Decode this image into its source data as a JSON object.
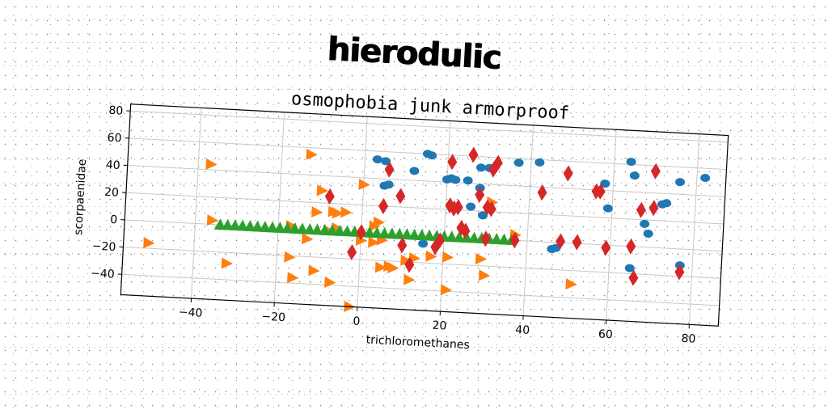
{
  "main_title": "hierodulic",
  "chart_data": {
    "type": "scatter",
    "title": "osmophobia junk armorproof",
    "xlabel": "trichloromethanes",
    "ylabel": "scorpaenidae",
    "xlim": [
      -57,
      87
    ],
    "ylim": [
      -55,
      85
    ],
    "xticks": [
      -40,
      -20,
      0,
      20,
      40,
      60,
      80
    ],
    "yticks": [
      -40,
      -20,
      0,
      20,
      40,
      60,
      80
    ],
    "grid": true,
    "series": [
      {
        "marker": "circle",
        "color": "#1f77b4",
        "x": [
          3,
          5,
          5,
          6,
          12,
          15,
          16,
          20,
          21,
          22,
          25,
          26,
          28,
          28,
          29,
          30,
          37,
          42,
          46,
          47,
          58,
          59,
          64,
          65,
          65,
          68,
          69,
          72,
          73,
          76,
          77,
          82,
          15
        ],
        "y": [
          54,
          53,
          35,
          36,
          47,
          60,
          59,
          42,
          43,
          42,
          42,
          23,
          52,
          37,
          17,
          52,
          57,
          58,
          -5,
          -4,
          45,
          27,
          62,
          52,
          -16,
          17,
          10,
          32,
          33,
          49,
          -12,
          53,
          -6
        ]
      },
      {
        "marker": "triangle-right",
        "color": "#ff7f0e",
        "x": [
          -37,
          -36,
          -13,
          0,
          -10,
          -11,
          -7,
          -6,
          -4,
          3,
          4,
          -8,
          -6,
          -13,
          0,
          3,
          5,
          5,
          7,
          8,
          11,
          13,
          17,
          21,
          29,
          31,
          37,
          51,
          -51,
          -32,
          -17,
          -16,
          -11,
          -7,
          -2,
          12,
          21,
          30,
          -17
        ],
        "y": [
          44,
          3,
          55,
          35,
          29,
          13,
          14,
          13,
          14,
          5,
          8,
          0,
          2,
          -7,
          -6,
          -7,
          -5,
          -25,
          -24,
          -25,
          -19,
          -17,
          -15,
          -15,
          -15,
          27,
          4,
          -30,
          -16,
          -28,
          -21,
          -36,
          -30,
          -38,
          -55,
          -33,
          -39,
          -27,
          2
        ]
      },
      {
        "marker": "triangle-up",
        "color": "#2ca02c",
        "x": [
          -34,
          -32.2,
          -30.4,
          -28.6,
          -26.8,
          -25,
          -23.2,
          -21.4,
          -19.6,
          -17.8,
          -16,
          -14.2,
          -12.4,
          -10.6,
          -8.8,
          -7,
          -5.2,
          -3.4,
          -1.6,
          0.2,
          2,
          3.8,
          5.6,
          7.4,
          9.2,
          11,
          12.8,
          14.6,
          16.4,
          18.2,
          20,
          21.8,
          23.6,
          25.4,
          27.2,
          29,
          30.8,
          32.6,
          34.4,
          36.2
        ],
        "y": [
          0,
          0,
          0,
          0,
          0,
          0,
          0,
          0,
          0,
          0,
          0,
          0,
          0,
          0,
          0,
          0,
          0,
          0,
          0,
          0,
          0,
          0,
          0,
          0,
          0,
          0,
          0,
          0,
          0,
          0,
          0,
          0,
          0,
          0,
          0,
          0,
          0,
          0,
          0,
          0
        ]
      },
      {
        "marker": "diamond",
        "color": "#d62728",
        "x": [
          -8,
          -2,
          0,
          5,
          6,
          9,
          10,
          12,
          19,
          21,
          21,
          22,
          23,
          24,
          25,
          26,
          28,
          30,
          31,
          31,
          30,
          32,
          37,
          43,
          48,
          49,
          52,
          56,
          57,
          59,
          65,
          66,
          67,
          70,
          70,
          77,
          18
        ],
        "y": [
          25,
          -15,
          0,
          20,
          47,
          28,
          -8,
          -22,
          -3,
          23,
          55,
          21,
          22,
          7,
          5,
          61,
          32,
          23,
          22,
          51,
          0,
          56,
          0,
          36,
          1,
          51,
          1,
          39,
          39,
          -2,
          0,
          -23,
          27,
          29,
          56,
          -17,
          -8
        ]
      }
    ]
  }
}
